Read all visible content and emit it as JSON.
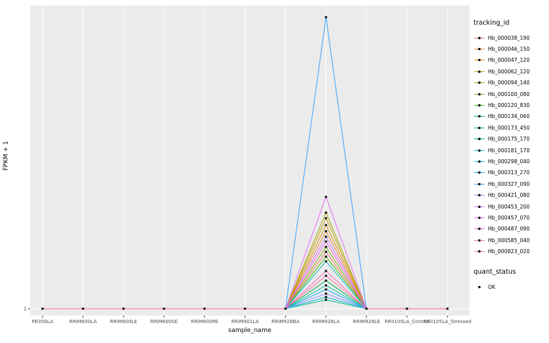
{
  "figure": {
    "background": "#FFFFFF",
    "panel_background": "#EBEBEB",
    "gridline_color": "#FFFFFF",
    "tick_color": "#333333",
    "tick_label_color": "#4D4D4D"
  },
  "axes": {
    "x_label": "sample_name",
    "y_label": "FPKM + 1",
    "y_tick_label": "1"
  },
  "legend": {
    "tracking_title": "tracking_id",
    "quant_title": "quant_status",
    "quant_item_label": "OK",
    "point_color": "#000000"
  },
  "chart_data": {
    "type": "line",
    "title": "",
    "xlabel": "sample_name",
    "ylabel": "FPKM + 1",
    "y_ticks_labeled": [
      1
    ],
    "ylim_estimate": [
      1,
      3100
    ],
    "legend_position": "right",
    "point_marker": "black-square",
    "baseline_value": 1,
    "peak_category": "RRIM928LA",
    "categories": [
      "PB350LA",
      "RRIM600LA",
      "RRIM600LE",
      "RRIM600SE",
      "RRIM600PE",
      "RRIM901LA",
      "RRIM928BA",
      "RRIM928LA",
      "RRIM928LE",
      "RRII105LA_Control",
      "RRII105LA_Stressed"
    ],
    "series": [
      {
        "name": "Hb_000038_190",
        "color": "#F8766D",
        "peak_value_estimate": 586
      },
      {
        "name": "Hb_000046_150",
        "color": "#EA8331",
        "peak_value_estimate": 798
      },
      {
        "name": "Hb_000047_120",
        "color": "#D89000",
        "peak_value_estimate": 861
      },
      {
        "name": "Hb_000062_120",
        "color": "#C09B00",
        "peak_value_estimate": 932
      },
      {
        "name": "Hb_000094_140",
        "color": "#A3A500",
        "peak_value_estimate": 989
      },
      {
        "name": "Hb_000100_080",
        "color": "#7CAE00",
        "peak_value_estimate": 636
      },
      {
        "name": "Hb_000120_830",
        "color": "#39B600",
        "peak_value_estimate": 537
      },
      {
        "name": "Hb_000134_060",
        "color": "#00BB4E",
        "peak_value_estimate": 290
      },
      {
        "name": "Hb_000173_450",
        "color": "#00BF7D",
        "peak_value_estimate": 93
      },
      {
        "name": "Hb_000175_170",
        "color": "#00C1A3",
        "peak_value_estimate": 241
      },
      {
        "name": "Hb_000181_170",
        "color": "#00BFC4",
        "peak_value_estimate": 488
      },
      {
        "name": "Hb_000298_040",
        "color": "#00BAE0",
        "peak_value_estimate": 121
      },
      {
        "name": "Hb_000313_270",
        "color": "#00B0F6",
        "peak_value_estimate": 199
      },
      {
        "name": "Hb_000327_090",
        "color": "#35A2FF",
        "peak_value_estimate": 3000
      },
      {
        "name": "Hb_000421_080",
        "color": "#9590FF",
        "peak_value_estimate": 156
      },
      {
        "name": "Hb_000453_200",
        "color": "#C77CFF",
        "peak_value_estimate": 741
      },
      {
        "name": "Hb_000457_070",
        "color": "#E76BF3",
        "peak_value_estimate": 1151
      },
      {
        "name": "Hb_000487_090",
        "color": "#FA62DB",
        "peak_value_estimate": 692
      },
      {
        "name": "Hb_000585_040",
        "color": "#FF62BC",
        "peak_value_estimate": 389
      },
      {
        "name": "Hb_000823_020",
        "color": "#FF6A98",
        "peak_value_estimate": 340
      }
    ]
  }
}
